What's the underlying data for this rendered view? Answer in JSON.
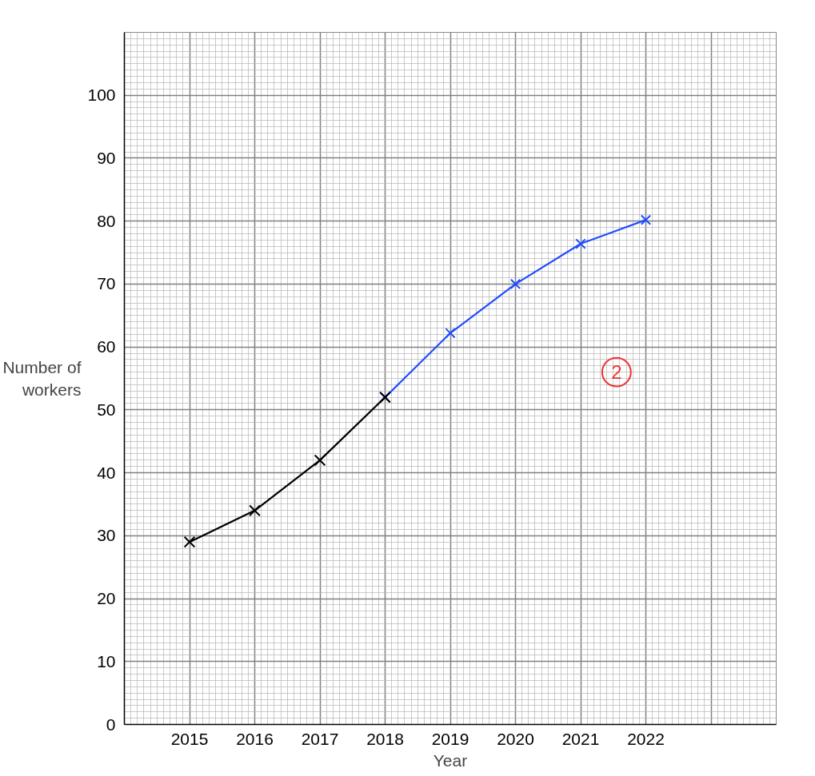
{
  "chart_data": {
    "type": "line",
    "xlabel": "Year",
    "ylabel": "Number of workers",
    "xlim": [
      2014,
      2024
    ],
    "ylim": [
      0,
      110
    ],
    "xticks": [
      2015,
      2016,
      2017,
      2018,
      2019,
      2020,
      2021,
      2022,
      {
        "value": 2023,
        "label": null
      }
    ],
    "yticks": [
      0,
      10,
      20,
      30,
      40,
      50,
      60,
      70,
      80,
      90,
      100
    ],
    "grid": true,
    "marker": "cross",
    "line_style": "solid",
    "series": [
      {
        "color": "#000000",
        "x": [
          2015,
          2016,
          2017,
          2018
        ],
        "values": [
          29,
          34,
          42,
          52
        ]
      },
      {
        "color": "#1f4cff",
        "x": [
          2018,
          2019,
          2020,
          2021,
          2022
        ],
        "values": [
          52,
          62.2,
          70,
          76.4,
          80.2
        ]
      }
    ],
    "annotations": [
      {
        "text": "2",
        "x": 2021.55,
        "y": 56
      }
    ]
  }
}
